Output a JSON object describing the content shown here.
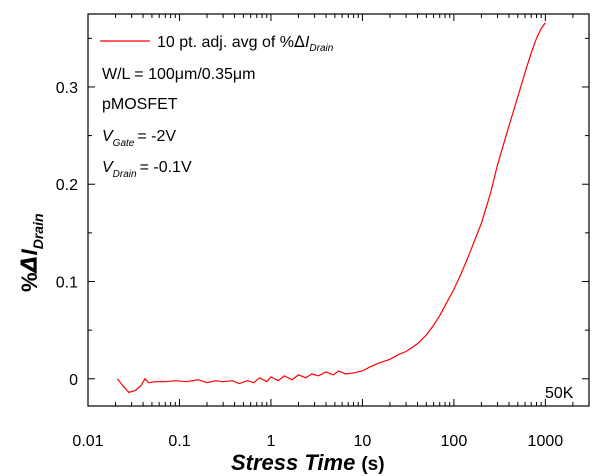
{
  "chart_data": {
    "type": "line",
    "xlabel": "Stress Time (s)",
    "xlabel_main": "Stress Time",
    "xlabel_unit": "(s)",
    "ylabel": "%ΔI_Drain",
    "x_scale": "log",
    "xlim": [
      0.01,
      3000
    ],
    "ylim": [
      -0.028,
      0.375
    ],
    "x_ticks": [
      0.01,
      0.1,
      1,
      10,
      100,
      1000
    ],
    "x_tick_labels": [
      "0.01",
      "0.1",
      "1",
      "10",
      "100",
      "1000"
    ],
    "y_ticks": [
      0,
      0.1,
      0.2,
      0.3
    ],
    "y_tick_labels": [
      "0",
      "0.1",
      "0.2",
      "0.3"
    ],
    "grid": false,
    "legend_position": "top-left",
    "legend": "10 pt. adj. avg of %ΔI_Drain",
    "annotations": {
      "geometry": "W/L = 100μm/0.35μm",
      "device": "pMOSFET",
      "vgate": "= -2V",
      "vdrain": "= -0.1V",
      "temperature": "50K"
    },
    "series": [
      {
        "name": "10 pt. adj. avg of %ΔI_Drain",
        "color": "#ff0000",
        "x": [
          0.021,
          0.024,
          0.028,
          0.033,
          0.038,
          0.042,
          0.046,
          0.055,
          0.07,
          0.09,
          0.12,
          0.16,
          0.2,
          0.25,
          0.3,
          0.38,
          0.45,
          0.55,
          0.65,
          0.75,
          0.9,
          1.0,
          1.2,
          1.4,
          1.7,
          2.0,
          2.4,
          2.8,
          3.3,
          4.0,
          4.8,
          5.5,
          6.5,
          8,
          10,
          12,
          15,
          20,
          25,
          30,
          40,
          50,
          60,
          70,
          80,
          100,
          120,
          150,
          200,
          250,
          300,
          400,
          500,
          600,
          700,
          800,
          900,
          1000
        ],
        "y": [
          0.0,
          -0.007,
          -0.014,
          -0.012,
          -0.007,
          0.0,
          -0.004,
          -0.003,
          -0.003,
          -0.002,
          -0.003,
          -0.001,
          -0.004,
          -0.002,
          -0.003,
          -0.002,
          -0.005,
          -0.002,
          -0.004,
          0.001,
          -0.003,
          0.002,
          -0.002,
          0.003,
          -0.001,
          0.004,
          0.001,
          0.005,
          0.003,
          0.007,
          0.004,
          0.008,
          0.005,
          0.006,
          0.008,
          0.012,
          0.016,
          0.02,
          0.025,
          0.028,
          0.036,
          0.045,
          0.055,
          0.065,
          0.075,
          0.092,
          0.108,
          0.13,
          0.16,
          0.19,
          0.22,
          0.26,
          0.29,
          0.315,
          0.335,
          0.35,
          0.36,
          0.366
        ]
      }
    ]
  }
}
